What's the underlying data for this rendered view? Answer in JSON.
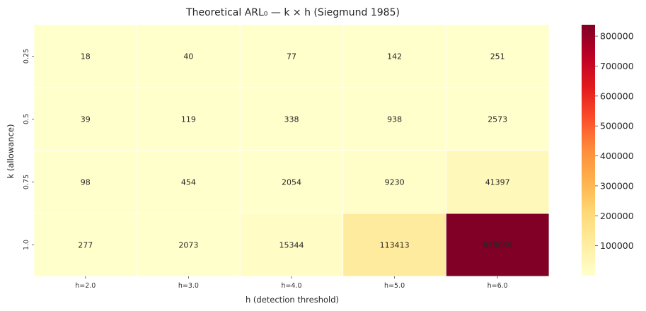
{
  "chart_data": {
    "type": "heatmap",
    "title": "Theoretical ARL₀ — k × h  (Siegmund 1985)",
    "xlabel": "h  (detection threshold)",
    "ylabel": "k  (allowance)",
    "x_categories": [
      "h=2.0",
      "h=3.0",
      "h=4.0",
      "h=5.0",
      "h=6.0"
    ],
    "y_categories": [
      "0.25",
      "0.5",
      "0.75",
      "1.0"
    ],
    "values": [
      [
        18,
        40,
        77,
        142,
        251
      ],
      [
        39,
        119,
        338,
        938,
        2573
      ],
      [
        98,
        454,
        2054,
        9230,
        41397
      ],
      [
        277,
        2073,
        15344,
        113413,
        838059
      ]
    ],
    "colorbar": {
      "colormap": "YlOrRd",
      "vmin": 18,
      "vmax": 838059,
      "ticks": [
        100000,
        200000,
        300000,
        400000,
        500000,
        600000,
        700000,
        800000
      ],
      "tick_labels": [
        "100000",
        "200000",
        "300000",
        "400000",
        "500000",
        "600000",
        "700000",
        "800000"
      ]
    },
    "cell_border_color": "#ffffff",
    "annotation_color": "#262626",
    "grid": false
  }
}
